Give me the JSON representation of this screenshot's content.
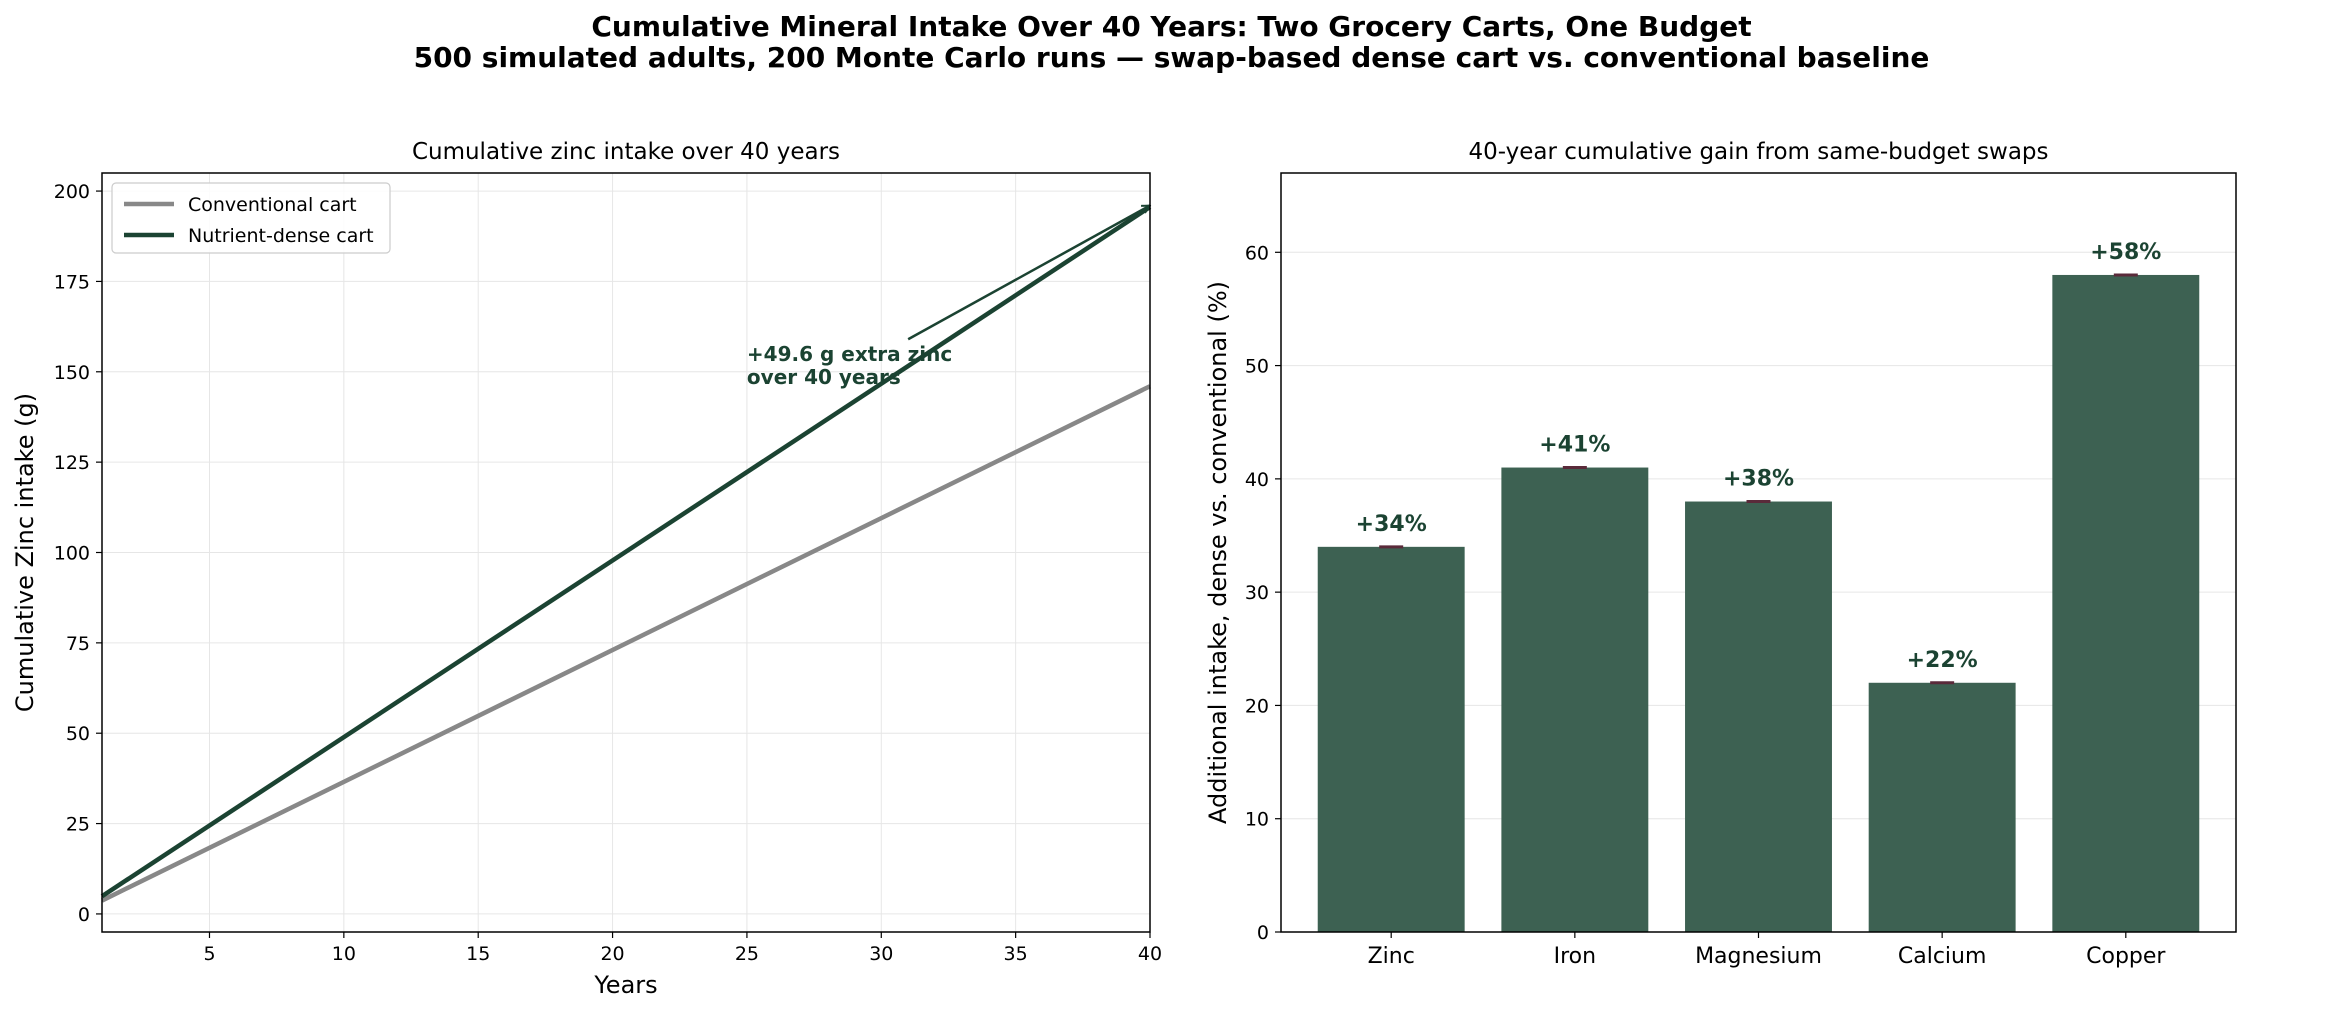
{
  "figure": {
    "title_line1": "Cumulative Mineral Intake Over 40 Years: Two Grocery Carts, One Budget",
    "title_line2": "500 simulated adults, 200 Monte Carlo runs — swap-based dense cart vs. conventional baseline"
  },
  "chart_data": [
    {
      "type": "line",
      "title": "Cumulative zinc intake over 40 years",
      "xlabel": "Years",
      "ylabel": "Cumulative Zinc intake (g)",
      "xlim": [
        1,
        40
      ],
      "ylim": [
        -5,
        205
      ],
      "xticks": [
        5,
        10,
        15,
        20,
        25,
        30,
        35,
        40
      ],
      "yticks": [
        0,
        25,
        50,
        75,
        100,
        125,
        150,
        175,
        200
      ],
      "grid": true,
      "legend_position": "top-left",
      "x": [
        1,
        40
      ],
      "series": [
        {
          "name": "Conventional cart",
          "color": "#888888",
          "values": [
            3.7,
            146.0
          ]
        },
        {
          "name": "Nutrient-dense cart",
          "color": "#1b4332",
          "values": [
            4.9,
            195.6
          ]
        }
      ],
      "annotation": {
        "line1": "+49.6 g extra zinc",
        "line2": "over 40 years",
        "text_at": [
          25,
          153
        ],
        "arrow_tail": [
          31,
          159
        ],
        "arrow_head": [
          40,
          196
        ]
      }
    },
    {
      "type": "bar",
      "title": "40-year cumulative gain from same-budget swaps",
      "xlabel": "",
      "ylabel": "Additional intake, dense vs. conventional (%)",
      "ylim": [
        0,
        67
      ],
      "yticks": [
        0,
        10,
        20,
        30,
        40,
        50,
        60
      ],
      "grid": true,
      "bar_color": "#3d6152",
      "categories": [
        "Zinc",
        "Iron",
        "Magnesium",
        "Calcium",
        "Copper"
      ],
      "values": [
        34,
        41,
        38,
        22,
        58
      ],
      "labels": [
        "+34%",
        "+41%",
        "+38%",
        "+22%",
        "+58%"
      ]
    }
  ]
}
